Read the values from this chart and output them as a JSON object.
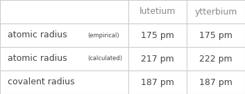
{
  "col_headers": [
    "lutetium",
    "ytterbium"
  ],
  "rows": [
    {
      "label_main": "atomic radius",
      "label_sub": "(empirical)",
      "values": [
        "175 pm",
        "175 pm"
      ]
    },
    {
      "label_main": "atomic radius",
      "label_sub": "(calculated)",
      "values": [
        "217 pm",
        "222 pm"
      ]
    },
    {
      "label_main": "covalent radius",
      "label_sub": "",
      "values": [
        "187 pm",
        "187 pm"
      ]
    }
  ],
  "background_color": "#ffffff",
  "header_text_color": "#888888",
  "cell_text_color": "#444444",
  "grid_color": "#cccccc",
  "label_main_fontsize": 9,
  "label_sub_fontsize": 6,
  "header_fontsize": 9,
  "value_fontsize": 9,
  "figwidth": 3.53,
  "figheight": 1.36,
  "dpi": 100,
  "col_bounds": [
    0.0,
    0.525,
    0.762,
    1.0
  ]
}
